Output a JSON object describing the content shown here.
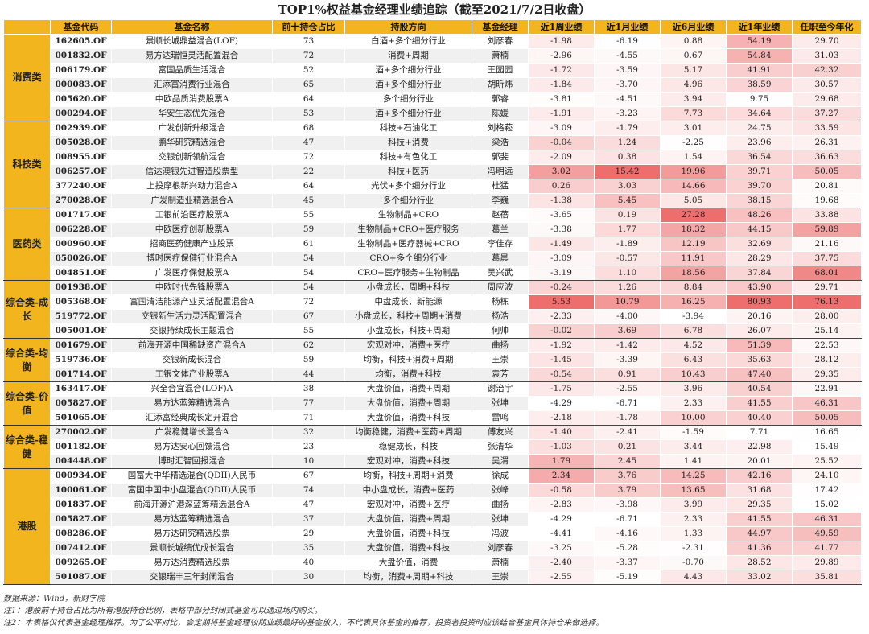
{
  "title": "TOP1%权益基金经理业绩追踪（截至2021/7/2日收盘）",
  "headers": [
    "基金代码",
    "基金名称",
    "前十持仓占比",
    "持股方向",
    "基金经理",
    "近1周业绩",
    "近1月业绩",
    "近6月业绩",
    "近1年业绩",
    "任职至今年化"
  ],
  "groups": [
    {
      "name": "消费类",
      "rows": [
        [
          "162605.OF",
          "景顺长城鼎益混合(LOF)",
          "73",
          "白酒+多个细分行业",
          "刘彦春",
          "-1.98",
          "-6.19",
          "0.88",
          "54.19",
          "29.70"
        ],
        [
          "001832.OF",
          "易方达瑞恒灵活配置混合",
          "72",
          "消费+周期",
          "萧楠",
          "-2.96",
          "-4.55",
          "0.67",
          "54.84",
          "31.03"
        ],
        [
          "006179.OF",
          "富国品质生活混合",
          "52",
          "酒+多个细分行业",
          "王园园",
          "-1.72",
          "-3.59",
          "5.17",
          "41.91",
          "42.32"
        ],
        [
          "000083.OF",
          "汇添富消费行业混合",
          "65",
          "酒+多个细分行业",
          "胡昕炜",
          "-1.84",
          "-3.70",
          "4.96",
          "38.59",
          "30.57"
        ],
        [
          "005620.OF",
          "中欧品质消费股票A",
          "64",
          "多个细分行业",
          "郭睿",
          "-3.81",
          "-4.51",
          "3.94",
          "9.75",
          "29.68"
        ],
        [
          "000294.OF",
          "华安生态优先混合",
          "53",
          "酒+多个细分行业",
          "陈媛",
          "-1.91",
          "-3.23",
          "7.73",
          "34.64",
          "37.27"
        ]
      ]
    },
    {
      "name": "科技类",
      "rows": [
        [
          "002939.OF",
          "广发创新升级混合",
          "68",
          "科技+石油化工",
          "刘格菘",
          "-3.09",
          "-1.79",
          "3.01",
          "24.75",
          "33.59"
        ],
        [
          "005028.OF",
          "鹏华研究精选混合",
          "47",
          "科技+消费",
          "梁浩",
          "-0.04",
          "1.24",
          "-2.25",
          "23.96",
          "26.31"
        ],
        [
          "008955.OF",
          "交银创新领航混合",
          "72",
          "科技+有色化工",
          "郭斐",
          "-2.09",
          "0.38",
          "1.54",
          "36.54",
          "36.63"
        ],
        [
          "006257.OF",
          "信达澳银先进智造股票型",
          "22",
          "科技+医药",
          "冯明远",
          "3.02",
          "15.42",
          "19.96",
          "39.71",
          "50.05"
        ],
        [
          "377240.OF",
          "上投摩根新兴动力混合A",
          "64",
          "光伏+多个细分行业",
          "杜猛",
          "0.26",
          "3.03",
          "14.66",
          "39.70",
          "20.81"
        ],
        [
          "270028.OF",
          "广发制造业精选混合A",
          "45",
          "多个细分行业",
          "李巍",
          "-1.38",
          "5.45",
          "5.05",
          "38.15",
          "19.68"
        ]
      ]
    },
    {
      "name": "医药类",
      "rows": [
        [
          "001717.OF",
          "工银前沿医疗股票A",
          "55",
          "生物制品+CRO",
          "赵蓓",
          "-3.65",
          "0.19",
          "27.28",
          "48.26",
          "33.88"
        ],
        [
          "006228.OF",
          "中欧医疗创新股票A",
          "59",
          "生物制品+CRO+医疗服务",
          "葛兰",
          "-3.38",
          "1.77",
          "18.32",
          "44.15",
          "59.89"
        ],
        [
          "000960.OF",
          "招商医药健康产业股票",
          "61",
          "生物制品+医疗器械+CRO",
          "李佳存",
          "-1.49",
          "-1.89",
          "12.19",
          "32.69",
          "21.16"
        ],
        [
          "050026.OF",
          "博时医疗保健行业混合A",
          "54",
          "CRO+多个细分行业",
          "葛晨",
          "-3.09",
          "-0.57",
          "11.91",
          "28.29",
          "37.75"
        ],
        [
          "004851.OF",
          "广发医疗保健股票A",
          "54",
          "CRO+医疗服务+生物制品",
          "吴兴武",
          "-3.19",
          "1.10",
          "18.56",
          "37.84",
          "68.01"
        ]
      ]
    },
    {
      "name": "综合类-成长",
      "rows": [
        [
          "001938.OF",
          "中欧时代先锋股票A",
          "54",
          "小盘成长，周期+科技",
          "周应波",
          "-0.24",
          "1.26",
          "8.84",
          "43.90",
          "29.71"
        ],
        [
          "005368.OF",
          "富国清洁能源产业灵活配置混合A",
          "72",
          "中盘成长，新能源",
          "杨栋",
          "5.53",
          "10.79",
          "16.25",
          "80.93",
          "76.13"
        ],
        [
          "519772.OF",
          "交银新生活力灵活配置混合",
          "67",
          "小盘成长，科技+周期+消费",
          "杨浩",
          "-2.33",
          "-4.00",
          "-3.94",
          "20.16",
          "28.00"
        ],
        [
          "005001.OF",
          "交银持续成长主题混合",
          "55",
          "小盘成长，科技+周期",
          "何帅",
          "-0.02",
          "3.69",
          "6.78",
          "26.07",
          "25.14"
        ]
      ]
    },
    {
      "name": "综合类-均衡",
      "rows": [
        [
          "001679.OF",
          "前海开源中国稀缺资产混合A",
          "62",
          "宏观对冲，消费+医疗",
          "曲扬",
          "-1.92",
          "-1.42",
          "4.52",
          "51.39",
          "22.53"
        ],
        [
          "519736.OF",
          "交银新成长混合",
          "59",
          "均衡，科技+消费+周期",
          "王崇",
          "-1.45",
          "-3.39",
          "6.43",
          "35.63",
          "28.12"
        ],
        [
          "001714.OF",
          "工银文体产业股票A",
          "44",
          "均衡，消费+科技",
          "袁芳",
          "-0.54",
          "0.91",
          "10.43",
          "47.40",
          "29.35"
        ]
      ]
    },
    {
      "name": "综合类-价值",
      "rows": [
        [
          "163417.OF",
          "兴全合宜混合(LOF)A",
          "38",
          "大盘价值，消费+周期",
          "谢治宇",
          "-1.75",
          "-2.55",
          "3.96",
          "40.54",
          "22.91"
        ],
        [
          "005827.OF",
          "易方达蓝筹精选混合",
          "77",
          "大盘价值，消费+周期",
          "张坤",
          "-4.29",
          "-6.71",
          "2.33",
          "41.55",
          "46.31"
        ],
        [
          "501065.OF",
          "汇添富经典成长定开混合",
          "71",
          "大盘价值，消费+科技",
          "雷鸣",
          "-2.18",
          "-1.78",
          "10.00",
          "40.40",
          "50.05"
        ]
      ]
    },
    {
      "name": "综合类-稳健",
      "rows": [
        [
          "270002.OF",
          "广发稳健增长混合A",
          "32",
          "均衡稳健，消费+医药+周期",
          "傅友兴",
          "-1.40",
          "-2.41",
          "-1.59",
          "7.71",
          "16.65"
        ],
        [
          "001182.OF",
          "易方达安心回馈混合",
          "23",
          "稳健成长，科技",
          "张清华",
          "-1.03",
          "0.21",
          "3.44",
          "22.98",
          "15.49"
        ],
        [
          "004448.OF",
          "博时汇智回报混合",
          "10",
          "宏观对冲，消费+科技",
          "吴渭",
          "1.79",
          "2.45",
          "1.41",
          "20.01",
          "25.52"
        ]
      ]
    },
    {
      "name": "港股",
      "rows": [
        [
          "000934.OF",
          "国富大中华精选混合(QDII)人民币",
          "67",
          "均衡，科技+周期+消费",
          "徐成",
          "2.34",
          "3.76",
          "14.25",
          "42.16",
          "24.10"
        ],
        [
          "100061.OF",
          "富国中国中小盘混合(QDII)人民币",
          "74",
          "中小盘成长，消费+医药",
          "张峰",
          "-0.58",
          "3.79",
          "13.65",
          "31.68",
          "17.42"
        ],
        [
          "001837.OF",
          "前海开源沪港深蓝筹精选混合A",
          "47",
          "宏观对冲，消费+医疗",
          "曲扬",
          "-2.83",
          "-3.98",
          "3.99",
          "29.35",
          "15.02"
        ],
        [
          "005827.OF",
          "易方达蓝筹精选混合",
          "37",
          "大盘价值，消费+周期",
          "张坤",
          "-4.29",
          "-6.71",
          "2.33",
          "41.55",
          "46.31"
        ],
        [
          "008286.OF",
          "易方达研究精选股票",
          "29",
          "大盘价值，消费+科技",
          "冯波",
          "-4.41",
          "-4.16",
          "1.33",
          "44.97",
          "49.59"
        ],
        [
          "007412.OF",
          "景顺长城绩优成长混合",
          "35",
          "大盘价值，消费+科技",
          "刘彦春",
          "-3.25",
          "-5.28",
          "-2.31",
          "41.36",
          "41.77"
        ],
        [
          "009265.OF",
          "易方达消费精选股票",
          "40",
          "大盘价值，消费",
          "萧楠",
          "-2.40",
          "-3.37",
          "-0.70",
          "28.52",
          "29.89"
        ],
        [
          "501087.OF",
          "交银瑞丰三年封闭混合",
          "30",
          "均衡，消费+周期+科技",
          "王崇",
          "-2.55",
          "-5.19",
          "4.43",
          "33.02",
          "35.81"
        ]
      ]
    }
  ],
  "notes": [
    "数据来源：Wind，新财学院",
    "注1：港股前十持仓占比为所有港股持仓比例，表格中部分封闭式基金可以通过场内购买。",
    "注2：本表格仅代表基金经理推荐。为了公平对比，会定期将基金经理较期业绩最好的基金放入，不代表具体基金的推荐，投资者投资时应该结合基金具体持仓来做选择。"
  ],
  "colors": {
    "header": "#f2b51e",
    "heat_max": "#ee6e6e",
    "heat_min": "#ffffff",
    "stripe": "#f0f0f0"
  }
}
